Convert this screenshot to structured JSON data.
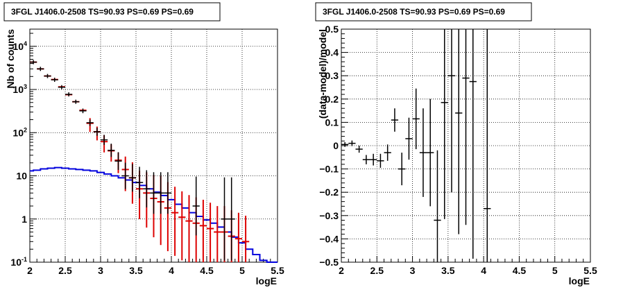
{
  "chart_data": [
    {
      "type": "histogram",
      "title": "3FGL J1406.0-2508 TS=90.93 PS=0.69 PS=0.69",
      "xlabel": "logE",
      "ylabel": "Nb of counts",
      "xlim": [
        2,
        5.5
      ],
      "ylim": [
        0.1,
        25000
      ],
      "yscale": "log",
      "grid": true,
      "x_ticks": [
        "2",
        "2.5",
        "3",
        "3.5",
        "4",
        "4.5",
        "5",
        "5.5"
      ],
      "y_ticks": [
        {
          "label": "10",
          "sup": "-1",
          "value": 0.1
        },
        {
          "label": "1",
          "sup": "",
          "value": 1
        },
        {
          "label": "10",
          "sup": "",
          "value": 10
        },
        {
          "label": "10",
          "sup": "2",
          "value": 100
        },
        {
          "label": "10",
          "sup": "3",
          "value": 1000
        },
        {
          "label": "10",
          "sup": "4",
          "value": 10000
        }
      ],
      "bin_width": 0.1,
      "series": [
        {
          "name": "",
          "role": "data",
          "color": "#000000",
          "points": [
            {
              "x": 2.05,
              "y": 4300
            },
            {
              "x": 2.15,
              "y": 3000
            },
            {
              "x": 2.25,
              "y": 2050
            },
            {
              "x": 2.35,
              "y": 1680
            },
            {
              "x": 2.45,
              "y": 1130
            },
            {
              "x": 2.55,
              "y": 770
            },
            {
              "x": 2.65,
              "y": 520
            },
            {
              "x": 2.75,
              "y": 320
            },
            {
              "x": 2.85,
              "y": 170
            },
            {
              "x": 2.95,
              "y": 105
            },
            {
              "x": 3.05,
              "y": 68
            },
            {
              "x": 3.15,
              "y": 39
            },
            {
              "x": 3.25,
              "y": 22
            },
            {
              "x": 3.35,
              "y": 10
            },
            {
              "x": 3.45,
              "y": 9
            },
            {
              "x": 3.55,
              "y": 7
            },
            {
              "x": 3.65,
              "y": 5
            },
            {
              "x": 3.75,
              "y": 4
            },
            {
              "x": 3.85,
              "y": 4
            },
            {
              "x": 3.95,
              "y": 4
            },
            {
              "x": 4.35,
              "y": 2
            },
            {
              "x": 4.75,
              "y": 1
            },
            {
              "x": 4.85,
              "y": 1
            }
          ]
        },
        {
          "name": "",
          "role": "model",
          "color": "#dd0000",
          "points": [
            {
              "x": 2.05,
              "y": 4300,
              "err": 0
            },
            {
              "x": 2.15,
              "y": 3000,
              "err": 0
            },
            {
              "x": 2.25,
              "y": 2050,
              "err": 0
            },
            {
              "x": 2.35,
              "y": 1700,
              "err": 0
            },
            {
              "x": 2.45,
              "y": 1150,
              "err": 0
            },
            {
              "x": 2.55,
              "y": 760,
              "err": 0
            },
            {
              "x": 2.65,
              "y": 520,
              "err": 0
            },
            {
              "x": 2.75,
              "y": 330,
              "err": 0
            },
            {
              "x": 2.85,
              "y": 165,
              "err": 0.2
            },
            {
              "x": 2.95,
              "y": 105,
              "err": 0.2
            },
            {
              "x": 3.05,
              "y": 62,
              "err": 0.25
            },
            {
              "x": 3.15,
              "y": 38,
              "err": 0.25
            },
            {
              "x": 3.25,
              "y": 23,
              "err": 0.3
            },
            {
              "x": 3.35,
              "y": 14,
              "err": 0.5
            },
            {
              "x": 3.45,
              "y": 9,
              "err": 0.6
            },
            {
              "x": 3.55,
              "y": 5,
              "err": 0.7
            },
            {
              "x": 3.65,
              "y": 4,
              "err": 0.8
            },
            {
              "x": 3.75,
              "y": 3,
              "err": 0.9
            },
            {
              "x": 3.85,
              "y": 2.5,
              "err": 1.0
            },
            {
              "x": 3.95,
              "y": 1.8,
              "err": 1.0
            },
            {
              "x": 4.05,
              "y": 1.4,
              "err": 1.0
            },
            {
              "x": 4.15,
              "y": 1.1,
              "err": 1.0
            },
            {
              "x": 4.25,
              "y": 0.9,
              "err": 1.0
            },
            {
              "x": 4.35,
              "y": 0.8,
              "err": 1.0
            },
            {
              "x": 4.45,
              "y": 0.7,
              "err": 1.0
            },
            {
              "x": 4.55,
              "y": 0.6,
              "err": 1.0
            },
            {
              "x": 4.65,
              "y": 0.5,
              "err": 1.0
            },
            {
              "x": 4.75,
              "y": 0.5,
              "err": 1.0
            },
            {
              "x": 4.85,
              "y": 0.4,
              "err": 1.0
            },
            {
              "x": 4.95,
              "y": 0.35,
              "err": 1.0
            },
            {
              "x": 5.05,
              "y": 0.3,
              "err": 1.0
            }
          ]
        },
        {
          "name": "",
          "role": "component",
          "color": "#0000dd",
          "x_edges": [
            1.95,
            2.05,
            2.15,
            2.25,
            2.35,
            2.45,
            2.55,
            2.65,
            2.75,
            2.85,
            2.95,
            3.05,
            3.15,
            3.25,
            3.35,
            3.45,
            3.55,
            3.65,
            3.75,
            3.85,
            3.95,
            4.05,
            4.15,
            4.25,
            4.35,
            4.45,
            4.55,
            4.65,
            4.75,
            4.85,
            4.95,
            5.05,
            5.15,
            5.25,
            5.35,
            5.5
          ],
          "values": [
            13,
            13.5,
            14.5,
            15,
            15.5,
            15,
            14.5,
            14,
            13.5,
            13,
            12,
            11,
            10,
            9,
            8,
            7,
            6,
            5,
            4.2,
            3.5,
            2.8,
            2.2,
            1.8,
            1.4,
            1.15,
            0.95,
            0.8,
            0.65,
            0.5,
            0.38,
            0.28,
            0.2,
            0.15,
            0.11,
            0.1
          ]
        }
      ]
    },
    {
      "type": "errorbar",
      "title": "3FGL J1406.0-2508 TS=90.93 PS=0.69 PS=0.69",
      "xlabel": "logE",
      "ylabel": "(data-model)/model",
      "xlim": [
        2,
        5.5
      ],
      "ylim": [
        -0.5,
        0.5
      ],
      "grid": true,
      "x_ticks": [
        "2",
        "2.5",
        "3",
        "3.5",
        "4",
        "4.5",
        "5",
        "5.5"
      ],
      "y_ticks": [
        "−0.5",
        "−0.4",
        "−0.3",
        "−0.2",
        "−0.1",
        "0",
        "0.1",
        "0.2",
        "0.3",
        "0.4",
        "0.5"
      ],
      "y_tick_values": [
        -0.5,
        -0.4,
        -0.3,
        -0.2,
        -0.1,
        0,
        0.1,
        0.2,
        0.3,
        0.4,
        0.5
      ],
      "bin_width": 0.1,
      "points": [
        {
          "x": 2.05,
          "y": 0.005,
          "err": 0.01
        },
        {
          "x": 2.15,
          "y": 0.01,
          "err": 0.012
        },
        {
          "x": 2.25,
          "y": -0.015,
          "err": 0.015
        },
        {
          "x": 2.35,
          "y": -0.06,
          "err": 0.02
        },
        {
          "x": 2.45,
          "y": -0.06,
          "err": 0.025
        },
        {
          "x": 2.55,
          "y": -0.065,
          "err": 0.03
        },
        {
          "x": 2.65,
          "y": -0.03,
          "err": 0.035
        },
        {
          "x": 2.75,
          "y": 0.11,
          "err": 0.05
        },
        {
          "x": 2.85,
          "y": -0.1,
          "err": 0.07
        },
        {
          "x": 2.95,
          "y": 0.03,
          "err": 0.09
        },
        {
          "x": 3.05,
          "y": 0.115,
          "err": 0.13
        },
        {
          "x": 3.15,
          "y": -0.03,
          "err": 0.19
        },
        {
          "x": 3.25,
          "y": -0.03,
          "err": 0.23
        },
        {
          "x": 3.35,
          "y": -0.32,
          "err": 0.3
        },
        {
          "x": 3.45,
          "y": 0.185,
          "err": 0.5
        },
        {
          "x": 3.55,
          "y": 0.3,
          "err": 0.5
        },
        {
          "x": 3.65,
          "y": 0.14,
          "err": 0.52
        },
        {
          "x": 3.75,
          "y": 0.29,
          "err": 0.63
        },
        {
          "x": 3.85,
          "y": 0.275,
          "err": 0.76
        },
        {
          "x": 4.05,
          "y": -0.27,
          "err": 0.85
        }
      ]
    }
  ]
}
